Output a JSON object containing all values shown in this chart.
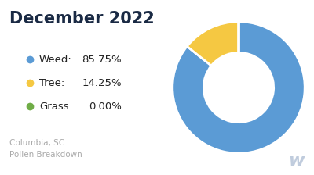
{
  "title": "December 2022",
  "subtitle1": "Columbia, SC",
  "subtitle2": "Pollen Breakdown",
  "categories": [
    "Weed",
    "Tree",
    "Grass"
  ],
  "values": [
    85.75,
    14.25,
    0.001
  ],
  "labels": [
    "85.75%",
    "14.25%",
    "0.00%"
  ],
  "colors": [
    "#5B9BD5",
    "#F5C842",
    "#70AD47"
  ],
  "bg_color": "#FFFFFF",
  "title_color": "#1A2A44",
  "legend_color": "#222222",
  "subtitle_color": "#AAAAAA",
  "watermark_color": "#C0CCDD",
  "title_fontsize": 15,
  "legend_fontsize": 9.5,
  "subtitle_fontsize": 7.5,
  "watermark_fontsize": 16
}
